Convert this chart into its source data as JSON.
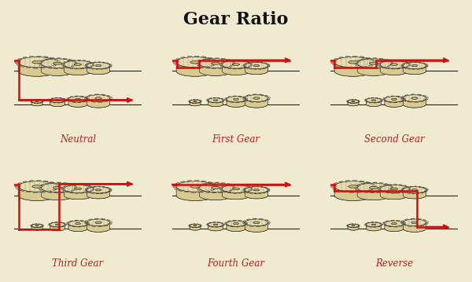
{
  "title": "Gear Ratio",
  "title_fontsize": 16,
  "title_fontfamily": "serif",
  "title_fontweight": "bold",
  "background_color": "#f0ead0",
  "labels": [
    "Neutral",
    "First Gear",
    "Second Gear",
    "Third Gear",
    "Fourth Gear",
    "Reverse"
  ],
  "label_color": "#b22222",
  "label_fontsize": 8.5,
  "label_fontstyle": "italic",
  "label_fontfamily": "serif",
  "line_color": "#cc1111",
  "line_width": 1.8,
  "gear_edge_color": "#222222",
  "gear_fill_light": "#e8ddb0",
  "gear_fill_dark": "#c8b878",
  "gear_fill_mid": "#d8ca90"
}
